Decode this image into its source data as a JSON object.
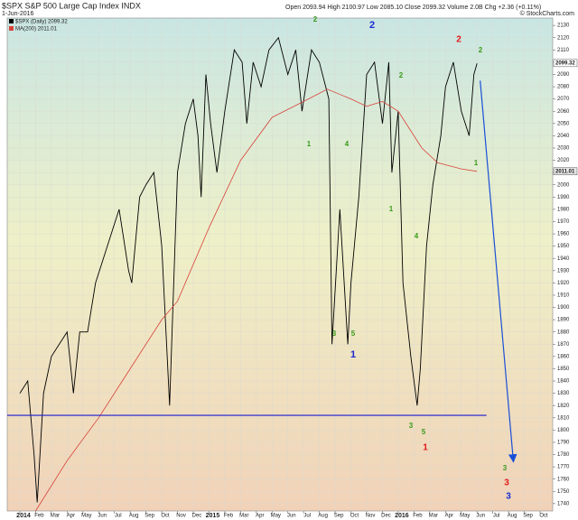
{
  "chart_data": {
    "type": "line",
    "title": "$SPX S&P 500 Large Cap Index INDX",
    "date": "1-Jun-2016",
    "quote": "Open 2093.94  High 2100.97  Low 2085.10  Close 2099.32  Volume 2.0B  Chg +2.36 (+0.11%)",
    "source": "© StockCharts.com",
    "series": [
      {
        "name": "$SPX (Daily) 2099.32",
        "color": "#000000",
        "x": [
          0.0,
          0.5,
          0.9,
          1.1,
          1.5,
          2.0,
          2.5,
          3.0,
          3.4,
          3.8,
          4.3,
          4.8,
          5.3,
          5.8,
          6.3,
          6.9,
          7.1,
          7.6,
          8.0,
          8.5,
          9.0,
          9.5,
          10.0,
          10.5,
          11.0,
          11.3,
          11.5,
          11.8,
          12.1,
          12.5,
          13.0,
          13.6,
          14.1,
          14.4,
          14.8,
          15.3,
          15.8,
          16.4,
          17.0,
          17.5,
          17.9,
          18.5,
          19.0,
          19.6,
          19.8,
          20.3,
          20.8,
          21.0,
          21.5,
          22.0,
          22.5,
          23.0,
          23.4,
          23.6,
          24.0,
          24.3,
          24.8,
          25.2,
          25.4,
          25.8,
          26.2,
          26.7,
          27.0,
          27.5,
          28.0,
          28.5,
          28.8,
          29.0
        ],
        "values": [
          1830,
          1840,
          1780,
          1741,
          1830,
          1860,
          1870,
          1880,
          1830,
          1880,
          1880,
          1920,
          1940,
          1960,
          1980,
          1930,
          1920,
          1990,
          2000,
          2010,
          1950,
          1820,
          2010,
          2050,
          2070,
          2040,
          1990,
          2090,
          2050,
          2010,
          2060,
          2110,
          2100,
          2050,
          2100,
          2080,
          2110,
          2120,
          2090,
          2110,
          2060,
          2110,
          2100,
          2070,
          1870,
          1980,
          1870,
          1920,
          1990,
          2090,
          2100,
          2050,
          2100,
          2010,
          2060,
          1920,
          1860,
          1820,
          1850,
          1950,
          2000,
          2040,
          2080,
          2100,
          2060,
          2040,
          2090,
          2099
        ]
      },
      {
        "name": "MA(200) 2011.01",
        "color": "#d9413a",
        "x": [
          1,
          3,
          5,
          7,
          9,
          10,
          12,
          14,
          16,
          18,
          19.5,
          21,
          22,
          23,
          24,
          25.5,
          26.5,
          28,
          29
        ],
        "values": [
          1734,
          1775,
          1810,
          1850,
          1890,
          1905,
          1965,
          2020,
          2055,
          2068,
          2078,
          2070,
          2064,
          2068,
          2060,
          2030,
          2018,
          2013,
          2011
        ]
      }
    ],
    "overlays": [
      {
        "color": "#1a1ad0",
        "x": [
          -0.8,
          29.6
        ],
        "values": [
          1812,
          1812
        ]
      },
      {
        "color": "#1a4fd6",
        "x": [
          29.2,
          31.3
        ],
        "values": [
          2085,
          1775
        ]
      }
    ],
    "price_tags": [
      2099.32,
      2011.01
    ],
    "annotations": [
      {
        "text": "2",
        "color": "#3a9a1a"
      },
      {
        "text": "2",
        "color": "#1a2ad0"
      },
      {
        "text": "2",
        "color": "#e01a1a"
      },
      {
        "text": "2",
        "color": "#3a9a1a"
      },
      {
        "text": "1",
        "color": "#3a9a1a"
      },
      {
        "text": "4",
        "color": "#3a9a1a"
      },
      {
        "text": "2",
        "color": "#3a9a1a"
      },
      {
        "text": "1",
        "color": "#3a9a1a"
      },
      {
        "text": "4",
        "color": "#3a9a1a"
      },
      {
        "text": "3",
        "color": "#3a9a1a"
      },
      {
        "text": "5",
        "color": "#3a9a1a"
      },
      {
        "text": "1",
        "color": "#1a2ad0"
      },
      {
        "text": "3",
        "color": "#3a9a1a"
      },
      {
        "text": "5",
        "color": "#3a9a1a"
      },
      {
        "text": "1",
        "color": "#e01a1a"
      },
      {
        "text": "1",
        "color": "#3a9a1a"
      },
      {
        "text": "3",
        "color": "#3a9a1a"
      },
      {
        "text": "3",
        "color": "#e01a1a"
      },
      {
        "text": "3",
        "color": "#1a2ad0"
      }
    ],
    "xlim": [
      -0.8,
      33.8
    ],
    "xticks": [
      {
        "value": 0,
        "label": "2014"
      },
      {
        "value": 1,
        "label": "Feb"
      },
      {
        "value": 2,
        "label": "Mar"
      },
      {
        "value": 3,
        "label": "Apr"
      },
      {
        "value": 4,
        "label": "May"
      },
      {
        "value": 5,
        "label": "Jun"
      },
      {
        "value": 6,
        "label": "Jul"
      },
      {
        "value": 7,
        "label": "Aug"
      },
      {
        "value": 8,
        "label": "Sep"
      },
      {
        "value": 9,
        "label": "Oct"
      },
      {
        "value": 10,
        "label": "Nov"
      },
      {
        "value": 11,
        "label": "Dec"
      },
      {
        "value": 12,
        "label": "2015"
      },
      {
        "value": 13,
        "label": "Feb"
      },
      {
        "value": 14,
        "label": "Mar"
      },
      {
        "value": 15,
        "label": "Apr"
      },
      {
        "value": 16,
        "label": "May"
      },
      {
        "value": 17,
        "label": "Jun"
      },
      {
        "value": 18,
        "label": "Jul"
      },
      {
        "value": 19,
        "label": "Aug"
      },
      {
        "value": 20,
        "label": "Sep"
      },
      {
        "value": 21,
        "label": "Oct"
      },
      {
        "value": 22,
        "label": "Nov"
      },
      {
        "value": 23,
        "label": "Dec"
      },
      {
        "value": 24,
        "label": "2016"
      },
      {
        "value": 25,
        "label": "Feb"
      },
      {
        "value": 26,
        "label": "Mar"
      },
      {
        "value": 27,
        "label": "Apr"
      },
      {
        "value": 28,
        "label": "May"
      },
      {
        "value": 29,
        "label": "Jun"
      },
      {
        "value": 30,
        "label": "Jul"
      },
      {
        "value": 31,
        "label": "Aug"
      },
      {
        "value": 32,
        "label": "Sep"
      },
      {
        "value": 33,
        "label": "Oct"
      }
    ],
    "ylim": [
      1734,
      2136
    ],
    "yticks": [
      1740,
      1750,
      1760,
      1770,
      1780,
      1790,
      1800,
      1810,
      1820,
      1830,
      1840,
      1850,
      1860,
      1870,
      1880,
      1890,
      1900,
      1910,
      1920,
      1930,
      1940,
      1950,
      1960,
      1970,
      1980,
      1990,
      2000,
      2010,
      2020,
      2030,
      2040,
      2050,
      2060,
      2070,
      2080,
      2090,
      2100,
      2110,
      2120,
      2130
    ],
    "grid": true
  }
}
